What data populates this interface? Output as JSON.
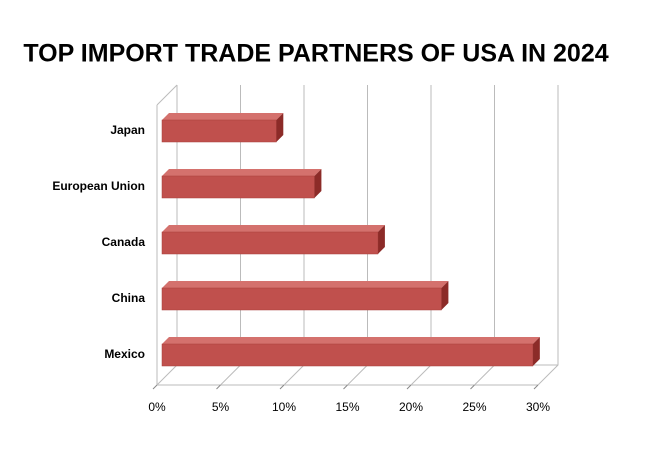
{
  "chart_data": {
    "type": "bar",
    "orientation": "horizontal",
    "title": "TOP IMPORT TRADE PARTNERS OF USA IN 2024",
    "categories": [
      "Japan",
      "European Union",
      "Canada",
      "China",
      "Mexico"
    ],
    "values": [
      9,
      12,
      17,
      22,
      29.2
    ],
    "color": "#c0504d",
    "xlim": [
      0,
      30
    ],
    "xticks": [
      {
        "value": 0,
        "label": "0%"
      },
      {
        "value": 5,
        "label": "5%"
      },
      {
        "value": 10,
        "label": "10%"
      },
      {
        "value": 15,
        "label": "15%"
      },
      {
        "value": 20,
        "label": "20%"
      },
      {
        "value": 25,
        "label": "25%"
      },
      {
        "value": 30,
        "label": "30%"
      }
    ],
    "grid": true
  }
}
